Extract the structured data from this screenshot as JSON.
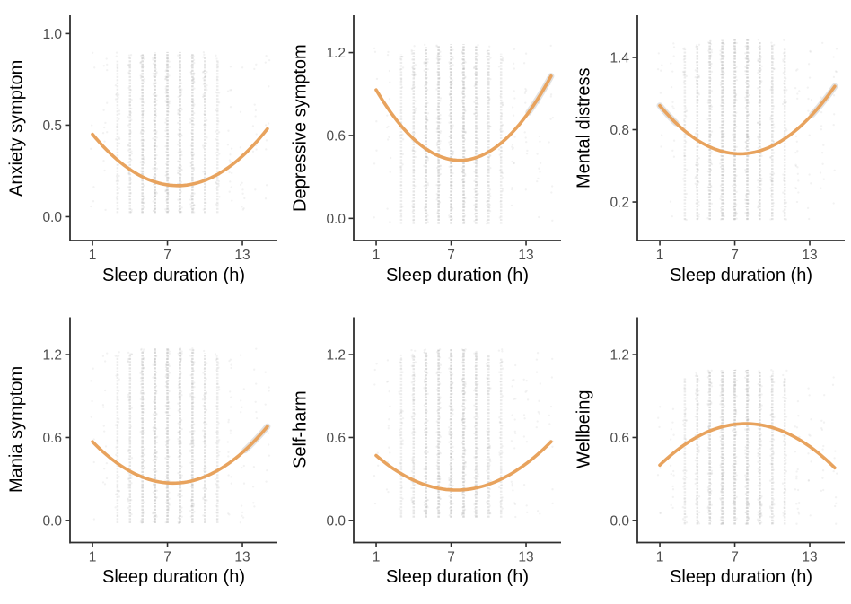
{
  "figure": {
    "xlabel": "Sleep duration (h)",
    "x_values": [
      1,
      2,
      3,
      4,
      5,
      6,
      7,
      8,
      9,
      10,
      11,
      12,
      13,
      14,
      15
    ],
    "density_weights": [
      0.02,
      0.12,
      0.32,
      0.55,
      0.8,
      0.95,
      1.0,
      1.0,
      0.85,
      0.6,
      0.35,
      0.18,
      0.1,
      0.07,
      0.05
    ],
    "colors": {
      "curve": "#E8A35E",
      "ci_band": "#ADADAD",
      "points": "#ADADAD",
      "strip": "#C2C2C2",
      "axis": "#2F2F2F",
      "tick_text": "#4D4D4D",
      "title_text": "#000000",
      "background": "#FFFFFF"
    }
  },
  "chart_data": [
    {
      "type": "scatter",
      "ylabel": "Anxiety symptom",
      "xlabel": "Sleep duration (h)",
      "xticks": [
        1,
        7,
        13
      ],
      "yticks": [
        0,
        0.5,
        1.0
      ],
      "ytick_labels": [
        "0.0",
        "0.5",
        "1.0"
      ],
      "xlim": [
        -0.8,
        15.8
      ],
      "ylim": [
        -0.13,
        1.1
      ],
      "points_y_range": [
        0.02,
        0.9
      ],
      "curve_shape": "U",
      "curve_points": [
        [
          1,
          0.45
        ],
        [
          8,
          0.17
        ],
        [
          15,
          0.48
        ]
      ],
      "ci_ends": [
        false,
        false
      ]
    },
    {
      "type": "scatter",
      "ylabel": "Depressive symptom",
      "xlabel": "Sleep duration (h)",
      "xticks": [
        1,
        7,
        13
      ],
      "yticks": [
        0,
        0.6,
        1.2
      ],
      "ytick_labels": [
        "0.0",
        "0.6",
        "1.2"
      ],
      "xlim": [
        -0.8,
        15.8
      ],
      "ylim": [
        -0.16,
        1.47
      ],
      "points_y_range": [
        -0.04,
        1.26
      ],
      "curve_shape": "U",
      "curve_points": [
        [
          1,
          0.93
        ],
        [
          7.8,
          0.42
        ],
        [
          15,
          1.03
        ]
      ],
      "ci_ends": [
        false,
        true
      ]
    },
    {
      "type": "scatter",
      "ylabel": "Mental distress",
      "xlabel": "Sleep duration (h)",
      "xticks": [
        1,
        7,
        13
      ],
      "yticks": [
        0.2,
        0.8,
        1.4
      ],
      "ytick_labels": [
        "0.2",
        "0.8",
        "1.4"
      ],
      "xlim": [
        -0.8,
        15.8
      ],
      "ylim": [
        -0.12,
        1.75
      ],
      "points_y_range": [
        0.05,
        1.55
      ],
      "curve_shape": "U",
      "curve_points": [
        [
          1,
          1.0
        ],
        [
          7.3,
          0.6
        ],
        [
          15,
          1.16
        ]
      ],
      "ci_ends": [
        true,
        true
      ]
    },
    {
      "type": "scatter",
      "ylabel": "Mania symptom",
      "xlabel": "Sleep duration (h)",
      "xticks": [
        1,
        7,
        13
      ],
      "yticks": [
        0,
        0.6,
        1.2
      ],
      "ytick_labels": [
        "0.0",
        "0.6",
        "1.2"
      ],
      "xlim": [
        -0.8,
        15.8
      ],
      "ylim": [
        -0.16,
        1.47
      ],
      "points_y_range": [
        -0.02,
        1.25
      ],
      "curve_shape": "U",
      "curve_points": [
        [
          1,
          0.57
        ],
        [
          7.6,
          0.27
        ],
        [
          15,
          0.68
        ]
      ],
      "ci_ends": [
        false,
        true
      ]
    },
    {
      "type": "scatter",
      "ylabel": "Self-harm",
      "xlabel": "Sleep duration (h)",
      "xticks": [
        1,
        7,
        13
      ],
      "yticks": [
        0,
        0.6,
        1.2
      ],
      "ytick_labels": [
        "0.0",
        "0.6",
        "1.2"
      ],
      "xlim": [
        -0.8,
        15.8
      ],
      "ylim": [
        -0.16,
        1.47
      ],
      "points_y_range": [
        0.02,
        1.24
      ],
      "curve_shape": "U",
      "curve_points": [
        [
          1,
          0.47
        ],
        [
          7.5,
          0.22
        ],
        [
          15,
          0.57
        ]
      ],
      "ci_ends": [
        false,
        false
      ]
    },
    {
      "type": "scatter",
      "ylabel": "Wellbeing",
      "xlabel": "Sleep duration (h)",
      "xticks": [
        1,
        7,
        13
      ],
      "yticks": [
        0,
        0.6,
        1.2
      ],
      "ytick_labels": [
        "0.0",
        "0.6",
        "1.2"
      ],
      "xlim": [
        -0.8,
        15.8
      ],
      "ylim": [
        -0.16,
        1.47
      ],
      "points_y_range": [
        -0.03,
        1.09
      ],
      "curve_shape": "inverted-U",
      "curve_points": [
        [
          1,
          0.4
        ],
        [
          8,
          0.7
        ],
        [
          15,
          0.38
        ]
      ],
      "ci_ends": [
        false,
        false
      ]
    }
  ]
}
